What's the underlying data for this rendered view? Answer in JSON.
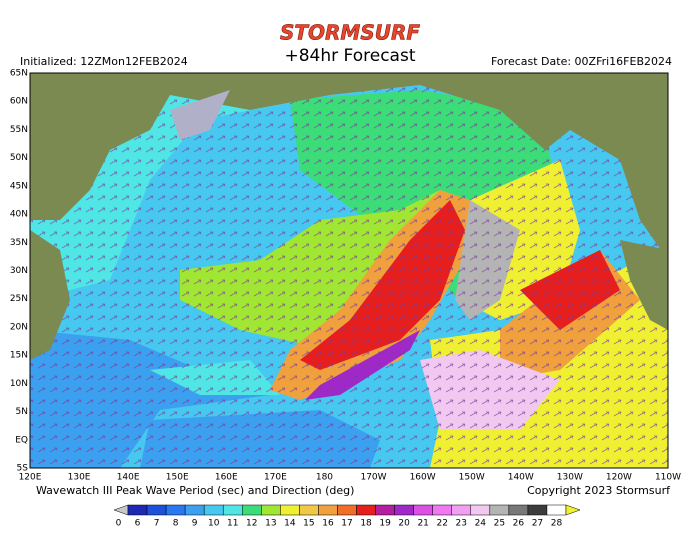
{
  "header": {
    "logo": "STORMSURF",
    "title": "+84hr Forecast",
    "initialized": "Initialized: 12ZMon12FEB2024",
    "forecast_date": "Forecast Date: 00ZFri16FEB2024"
  },
  "map": {
    "lat_labels": [
      "65N",
      "60N",
      "55N",
      "50N",
      "45N",
      "40N",
      "35N",
      "30N",
      "25N",
      "20N",
      "15N",
      "10N",
      "5N",
      "EQ",
      "5S"
    ],
    "lon_labels": [
      "120E",
      "130E",
      "140E",
      "150E",
      "160E",
      "170E",
      "180",
      "170W",
      "160W",
      "150W",
      "140W",
      "130W",
      "120W",
      "110W"
    ]
  },
  "footer": {
    "description": "Wavewatch III Peak Wave Period (sec) and Direction (deg)",
    "copyright": "Copyright 2023 Stormsurf"
  },
  "legend": {
    "labels": [
      "0",
      "6",
      "7",
      "8",
      "9",
      "10",
      "11",
      "12",
      "13",
      "14",
      "15",
      "16",
      "17",
      "18",
      "19",
      "20",
      "21",
      "22",
      "23",
      "24",
      "25",
      "26",
      "27",
      "28"
    ],
    "under_color": "#c8c8c8",
    "colors": [
      "#1e28b4",
      "#1e50dc",
      "#2878f0",
      "#3ca0f0",
      "#46c8f0",
      "#50e6e6",
      "#3cdc78",
      "#a0e632",
      "#f0f032",
      "#f0c846",
      "#f0a03c",
      "#f06e28",
      "#e61e1e",
      "#b41ea0",
      "#a028c8",
      "#dc50e6",
      "#f078f0",
      "#f0a0f0",
      "#f0c8f0",
      "#b4b4b4",
      "#787878",
      "#3c3c3c",
      "#ffffff"
    ],
    "over_color": "#f0f032"
  }
}
